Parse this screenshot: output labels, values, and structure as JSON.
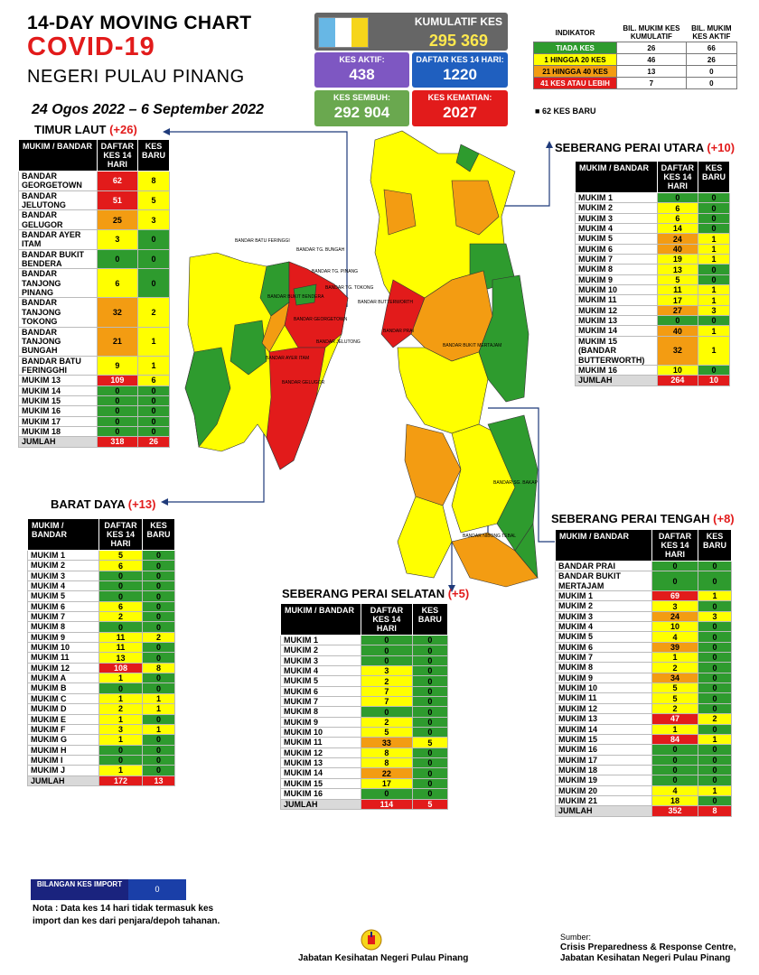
{
  "header": {
    "title_line1": "14-DAY MOVING CHART",
    "title_line2": "COVID-19",
    "title_line3": "NEGERI PULAU PINANG",
    "date_range": "24 Ogos 2022 – 6 September 2022"
  },
  "summary": {
    "kumulatif_label": "KUMULATIF KES",
    "kumulatif_value": "295 369",
    "aktif_label": "KES AKTIF:",
    "aktif_value": "438",
    "daftar14_label": "DAFTAR KES 14 HARI:",
    "daftar14_value": "1220",
    "sembuh_label": "KES SEMBUH:",
    "sembuh_value": "292 904",
    "kematian_label": "KES KEMATIAN:",
    "kematian_value": "2027"
  },
  "indicator": {
    "col_indikator": "INDIKATOR",
    "col_kumulatif": "BIL. MUKIM KES KUMULATIF",
    "col_aktif": "BIL. MUKIM KES AKTIF",
    "rows": [
      {
        "label": "TIADA KES",
        "kumulatif": "26",
        "aktif": "66"
      },
      {
        "label": "1 HINGGA 20 KES",
        "kumulatif": "46",
        "aktif": "26"
      },
      {
        "label": "21 HINGGA 40 KES",
        "kumulatif": "13",
        "aktif": "0"
      },
      {
        "label": "41 KES ATAU LEBIH",
        "kumulatif": "7",
        "aktif": "0"
      }
    ],
    "new_cases_note": "62 KES BARU"
  },
  "colors": {
    "green": "#2e9b2e",
    "yellow": "#ffff00",
    "orange": "#f39c12",
    "red": "#e21b1b"
  },
  "col_headers": {
    "mukim": "MUKIM / BANDAR",
    "daftar": "DAFTAR KES 14 HARI",
    "baru": "KES BARU"
  },
  "tables": {
    "timur_laut": {
      "title": "TIMUR LAUT",
      "delta": "(+26)",
      "rows": [
        [
          "BANDAR GEORGETOWN",
          "62",
          "8"
        ],
        [
          "BANDAR JELUTONG",
          "51",
          "5"
        ],
        [
          "BANDAR GELUGOR",
          "25",
          "3"
        ],
        [
          "BANDAR AYER ITAM",
          "3",
          "0"
        ],
        [
          "BANDAR BUKIT BENDERA",
          "0",
          "0"
        ],
        [
          "BANDAR TANJONG PINANG",
          "6",
          "0"
        ],
        [
          "BANDAR TANJONG TOKONG",
          "32",
          "2"
        ],
        [
          "BANDAR TANJONG BUNGAH",
          "21",
          "1"
        ],
        [
          "BANDAR BATU FERINGGHI",
          "9",
          "1"
        ],
        [
          "MUKIM 13",
          "109",
          "6"
        ],
        [
          "MUKIM 14",
          "0",
          "0"
        ],
        [
          "MUKIM 15",
          "0",
          "0"
        ],
        [
          "MUKIM 16",
          "0",
          "0"
        ],
        [
          "MUKIM 17",
          "0",
          "0"
        ],
        [
          "MUKIM 18",
          "0",
          "0"
        ]
      ],
      "total_label": "JUMLAH",
      "total_daftar": "318",
      "total_baru": "26"
    },
    "barat_daya": {
      "title": "BARAT DAYA",
      "delta": "(+13)",
      "rows": [
        [
          "MUKIM 1",
          "5",
          "0"
        ],
        [
          "MUKIM 2",
          "6",
          "0"
        ],
        [
          "MUKIM 3",
          "0",
          "0"
        ],
        [
          "MUKIM 4",
          "0",
          "0"
        ],
        [
          "MUKIM 5",
          "0",
          "0"
        ],
        [
          "MUKIM 6",
          "6",
          "0"
        ],
        [
          "MUKIM 7",
          "2",
          "0"
        ],
        [
          "MUKIM 8",
          "0",
          "0"
        ],
        [
          "MUKIM 9",
          "11",
          "2"
        ],
        [
          "MUKIM 10",
          "11",
          "0"
        ],
        [
          "MUKIM 11",
          "13",
          "0"
        ],
        [
          "MUKIM 12",
          "108",
          "8"
        ],
        [
          "MUKIM A",
          "1",
          "0"
        ],
        [
          "MUKIM B",
          "0",
          "0"
        ],
        [
          "MUKIM C",
          "1",
          "1"
        ],
        [
          "MUKIM D",
          "2",
          "1"
        ],
        [
          "MUKIM E",
          "1",
          "0"
        ],
        [
          "MUKIM F",
          "3",
          "1"
        ],
        [
          "MUKIM G",
          "1",
          "0"
        ],
        [
          "MUKIM H",
          "0",
          "0"
        ],
        [
          "MUKIM I",
          "0",
          "0"
        ],
        [
          "MUKIM J",
          "1",
          "0"
        ]
      ],
      "total_label": "JUMLAH",
      "total_daftar": "172",
      "total_baru": "13"
    },
    "sp_utara": {
      "title": "SEBERANG PERAI UTARA",
      "delta": "(+10)",
      "rows": [
        [
          "MUKIM 1",
          "0",
          "0"
        ],
        [
          "MUKIM 2",
          "6",
          "0"
        ],
        [
          "MUKIM 3",
          "6",
          "0"
        ],
        [
          "MUKIM 4",
          "14",
          "0"
        ],
        [
          "MUKIM 5",
          "24",
          "1"
        ],
        [
          "MUKIM 6",
          "40",
          "1"
        ],
        [
          "MUKIM 7",
          "19",
          "1"
        ],
        [
          "MUKIM 8",
          "13",
          "0"
        ],
        [
          "MUKIM 9",
          "5",
          "0"
        ],
        [
          "MUKIM 10",
          "11",
          "1"
        ],
        [
          "MUKIM 11",
          "17",
          "1"
        ],
        [
          "MUKIM 12",
          "27",
          "3"
        ],
        [
          "MUKIM 13",
          "0",
          "0"
        ],
        [
          "MUKIM 14",
          "40",
          "1"
        ],
        [
          "MUKIM 15 (BANDAR BUTTERWORTH)",
          "32",
          "1"
        ],
        [
          "MUKIM 16",
          "10",
          "0"
        ]
      ],
      "total_label": "JUMLAH",
      "total_daftar": "264",
      "total_baru": "10"
    },
    "sp_selatan": {
      "title": "SEBERANG PERAI SELATAN",
      "delta": "(+5)",
      "rows": [
        [
          "MUKIM 1",
          "0",
          "0"
        ],
        [
          "MUKIM 2",
          "0",
          "0"
        ],
        [
          "MUKIM 3",
          "0",
          "0"
        ],
        [
          "MUKIM 4",
          "3",
          "0"
        ],
        [
          "MUKIM 5",
          "2",
          "0"
        ],
        [
          "MUKIM 6",
          "7",
          "0"
        ],
        [
          "MUKIM 7",
          "7",
          "0"
        ],
        [
          "MUKIM 8",
          "0",
          "0"
        ],
        [
          "MUKIM 9",
          "2",
          "0"
        ],
        [
          "MUKIM 10",
          "5",
          "0"
        ],
        [
          "MUKIM 11",
          "33",
          "5"
        ],
        [
          "MUKIM 12",
          "8",
          "0"
        ],
        [
          "MUKIM 13",
          "8",
          "0"
        ],
        [
          "MUKIM 14",
          "22",
          "0"
        ],
        [
          "MUKIM 15",
          "17",
          "0"
        ],
        [
          "MUKIM 16",
          "0",
          "0"
        ]
      ],
      "total_label": "JUMLAH",
      "total_daftar": "114",
      "total_baru": "5"
    },
    "sp_tengah": {
      "title": "SEBERANG PERAI TENGAH",
      "delta": "(+8)",
      "rows": [
        [
          "BANDAR PRAI",
          "0",
          "0"
        ],
        [
          "BANDAR BUKIT MERTAJAM",
          "0",
          "0"
        ],
        [
          "MUKIM 1",
          "69",
          "1"
        ],
        [
          "MUKIM 2",
          "3",
          "0"
        ],
        [
          "MUKIM 3",
          "24",
          "3"
        ],
        [
          "MUKIM 4",
          "10",
          "0"
        ],
        [
          "MUKIM 5",
          "4",
          "0"
        ],
        [
          "MUKIM 6",
          "39",
          "0"
        ],
        [
          "MUKIM 7",
          "1",
          "0"
        ],
        [
          "MUKIM 8",
          "2",
          "0"
        ],
        [
          "MUKIM 9",
          "34",
          "0"
        ],
        [
          "MUKIM 10",
          "5",
          "0"
        ],
        [
          "MUKIM 11",
          "5",
          "0"
        ],
        [
          "MUKIM 12",
          "2",
          "0"
        ],
        [
          "MUKIM 13",
          "47",
          "2"
        ],
        [
          "MUKIM 14",
          "1",
          "0"
        ],
        [
          "MUKIM 15",
          "84",
          "1"
        ],
        [
          "MUKIM 16",
          "0",
          "0"
        ],
        [
          "MUKIM 17",
          "0",
          "0"
        ],
        [
          "MUKIM 18",
          "0",
          "0"
        ],
        [
          "MUKIM 19",
          "0",
          "0"
        ],
        [
          "MUKIM 20",
          "4",
          "1"
        ],
        [
          "MUKIM 21",
          "18",
          "0"
        ]
      ],
      "total_label": "JUMLAH",
      "total_daftar": "352",
      "total_baru": "8"
    }
  },
  "map_labels": {
    "island": [
      "BANDAR BATU FERINGGI",
      "BANDAR TG. BUNGAH",
      "BANDAR TG. PINANG",
      "BANDAR TG. TOKONG",
      "BANDAR BUKIT BENDERA",
      "BANDAR GEORGETOWN",
      "BANDAR AYER ITAM",
      "BANDAR JELUTONG",
      "BANDAR GELUGOR"
    ],
    "mainland": [
      "BANDAR BUTTERWORTH",
      "BANDAR PRAI",
      "BANDAR BUKIT MERTAJAM",
      "BANDAR SG. BAKAP",
      "BANDAR NIBONG TEBAL"
    ]
  },
  "import_box": {
    "label": "BILANGAN KES IMPORT",
    "value": "0"
  },
  "note": "Nota : Data kes 14 hari tidak termasuk kes import dan kes dari penjara/depoh tahanan.",
  "source": {
    "label": "Sumber:",
    "line1": "Crisis Preparedness & Response Centre,",
    "line2": "Jabatan Kesihatan Negeri Pulau Pinang"
  },
  "footer": "Jabatan Kesihatan Negeri Pulau Pinang"
}
